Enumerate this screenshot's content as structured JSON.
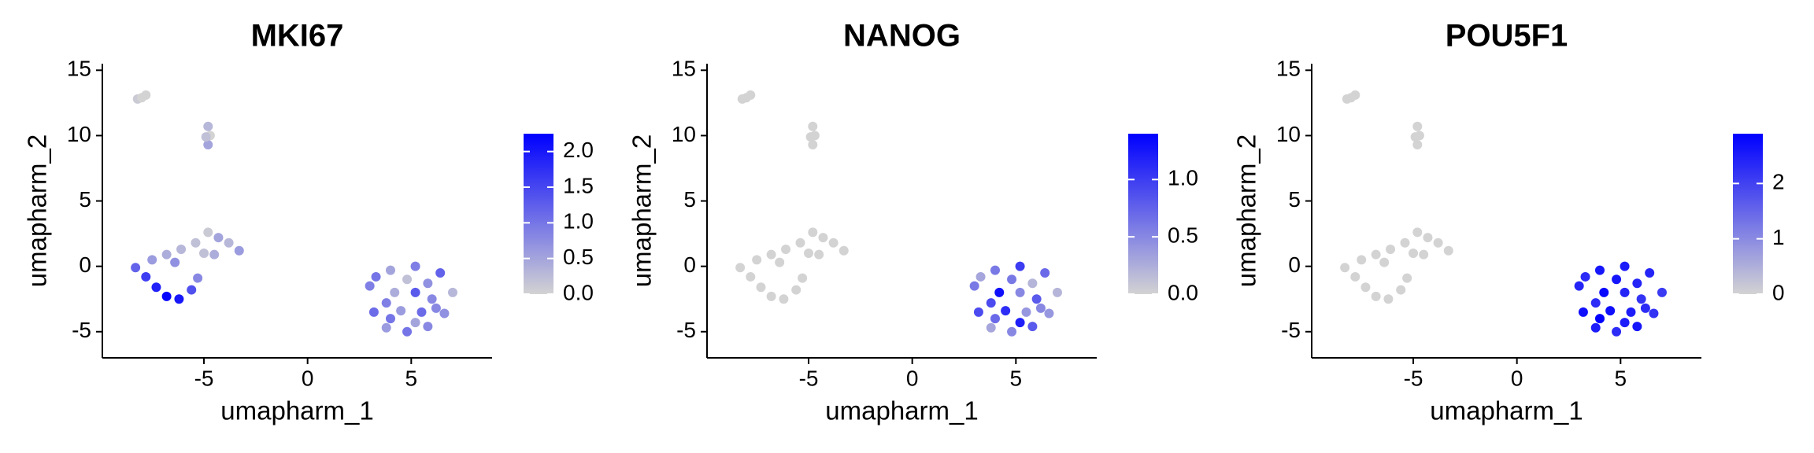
{
  "chart_data": [
    {
      "type": "scatter",
      "title": "MKI67",
      "xlabel": "umapharm_1",
      "ylabel": "umapharm_2",
      "xlim": [
        -9.9,
        8.9
      ],
      "ylim": [
        -7,
        15.5
      ],
      "xticks": [
        -5,
        0,
        5
      ],
      "yticks": [
        -5,
        0,
        5,
        10,
        15
      ],
      "low_color": "#d3d3d3",
      "high_color": "#0000ff",
      "clim": [
        0,
        2.25
      ],
      "cticks": [
        {
          "value": 0,
          "label": "0.0"
        },
        {
          "value": 0.5,
          "label": "0.5"
        },
        {
          "value": 1,
          "label": "1.0"
        },
        {
          "value": 1.5,
          "label": "1.5"
        },
        {
          "value": 2,
          "label": "2.0"
        }
      ],
      "x": [
        -8.2,
        -7.8,
        -8.0,
        -4.8,
        -4.7,
        -4.8,
        -4.9,
        -8.3,
        -7.8,
        -7.3,
        -6.8,
        -6.2,
        -5.6,
        -5.3,
        -7.5,
        -6.8,
        -6.1,
        -5.4,
        -4.8,
        -4.3,
        -3.8,
        -3.3,
        -5.0,
        -4.5,
        -6.4,
        3.0,
        3.2,
        3.8,
        4.8,
        5.8,
        6.6,
        7.0,
        6.4,
        5.2,
        4.0,
        3.3,
        4.2,
        5.2,
        6.0,
        4.5,
        5.5,
        3.8,
        4.8,
        5.8,
        4.0,
        5.2,
        6.2
      ],
      "y": [
        12.8,
        13.1,
        12.9,
        10.7,
        10.0,
        9.3,
        9.9,
        -0.1,
        -0.8,
        -1.6,
        -2.3,
        -2.5,
        -1.8,
        -0.9,
        0.5,
        0.9,
        1.3,
        1.8,
        2.6,
        2.2,
        1.8,
        1.2,
        1.0,
        0.9,
        0.3,
        -1.5,
        -3.5,
        -4.7,
        -5.0,
        -4.6,
        -3.6,
        -2.0,
        -0.5,
        0.0,
        -0.3,
        -0.8,
        -2.0,
        -2.0,
        -2.5,
        -3.4,
        -3.5,
        -2.8,
        -1.0,
        -1.3,
        -4.0,
        -4.3,
        -3.2
      ],
      "values": [
        0.1,
        0,
        0,
        0.3,
        0,
        0.5,
        0.2,
        1.2,
        1.6,
        1.9,
        2.2,
        2.0,
        1.4,
        0.8,
        0.6,
        0.4,
        0.3,
        0.2,
        0.1,
        0.5,
        0.3,
        0.6,
        0.2,
        0.4,
        0.7,
        0.9,
        1.1,
        0.6,
        1.0,
        0.8,
        0.7,
        0.3,
        1.2,
        0.9,
        0.5,
        1.0,
        0.4,
        1.3,
        0.8,
        0.6,
        1.1,
        0.9,
        0.2,
        0.7,
        1.0,
        0.5,
        0.8
      ]
    },
    {
      "type": "scatter",
      "title": "NANOG",
      "xlabel": "umapharm_1",
      "ylabel": "umapharm_2",
      "xlim": [
        -9.9,
        8.9
      ],
      "ylim": [
        -7,
        15.5
      ],
      "xticks": [
        -5,
        0,
        5
      ],
      "yticks": [
        -5,
        0,
        5,
        10,
        15
      ],
      "low_color": "#d3d3d3",
      "high_color": "#0000ff",
      "clim": [
        0,
        1.4
      ],
      "cticks": [
        {
          "value": 0,
          "label": "0.0"
        },
        {
          "value": 0.5,
          "label": "0.5"
        },
        {
          "value": 1,
          "label": "1.0"
        }
      ],
      "x": [
        -8.2,
        -7.8,
        -8.0,
        -4.8,
        -4.7,
        -4.8,
        -4.9,
        -8.3,
        -7.8,
        -7.3,
        -6.8,
        -6.2,
        -5.6,
        -5.3,
        -7.5,
        -6.8,
        -6.1,
        -5.4,
        -4.8,
        -4.3,
        -3.8,
        -3.3,
        -5.0,
        -4.5,
        -6.4,
        3.0,
        3.2,
        3.8,
        4.8,
        5.8,
        6.6,
        7.0,
        6.4,
        5.2,
        4.0,
        3.3,
        4.2,
        5.2,
        6.0,
        4.5,
        5.5,
        3.8,
        4.8,
        5.8,
        4.0,
        5.2,
        6.2
      ],
      "y": [
        12.8,
        13.1,
        12.9,
        10.7,
        10.0,
        9.3,
        9.9,
        -0.1,
        -0.8,
        -1.6,
        -2.3,
        -2.5,
        -1.8,
        -0.9,
        0.5,
        0.9,
        1.3,
        1.8,
        2.6,
        2.2,
        1.8,
        1.2,
        1.0,
        0.9,
        0.3,
        -1.5,
        -3.5,
        -4.7,
        -5.0,
        -4.6,
        -3.6,
        -2.0,
        -0.5,
        0.0,
        -0.3,
        -0.8,
        -2.0,
        -2.0,
        -2.5,
        -3.4,
        -3.5,
        -2.8,
        -1.0,
        -1.3,
        -4.0,
        -4.3,
        -3.2
      ],
      "values": [
        0,
        0,
        0,
        0,
        0,
        0,
        0,
        0,
        0,
        0,
        0,
        0,
        0,
        0,
        0,
        0,
        0,
        0,
        0,
        0,
        0,
        0,
        0,
        0,
        0,
        0.6,
        0.9,
        0.3,
        0.5,
        0.8,
        0.4,
        0.2,
        0.7,
        1.0,
        0.6,
        0.3,
        1.3,
        0.5,
        0.8,
        1.1,
        0.4,
        0.9,
        0.6,
        0.2,
        0.7,
        1.2,
        0.5
      ]
    },
    {
      "type": "scatter",
      "title": "POU5F1",
      "xlabel": "umapharm_1",
      "ylabel": "umapharm_2",
      "xlim": [
        -9.9,
        8.9
      ],
      "ylim": [
        -7,
        15.5
      ],
      "xticks": [
        -5,
        0,
        5
      ],
      "yticks": [
        -5,
        0,
        5,
        10,
        15
      ],
      "low_color": "#d3d3d3",
      "high_color": "#0000ff",
      "clim": [
        0,
        2.9
      ],
      "cticks": [
        0,
        1,
        2
      ],
      "x": [
        -8.2,
        -7.8,
        -8.0,
        -4.8,
        -4.7,
        -4.8,
        -4.9,
        -8.3,
        -7.8,
        -7.3,
        -6.8,
        -6.2,
        -5.6,
        -5.3,
        -7.5,
        -6.8,
        -6.1,
        -5.4,
        -4.8,
        -4.3,
        -3.8,
        -3.3,
        -5.0,
        -4.5,
        -6.4,
        3.0,
        3.2,
        3.8,
        4.8,
        5.8,
        6.6,
        7.0,
        6.4,
        5.2,
        4.0,
        3.3,
        4.2,
        5.2,
        6.0,
        4.5,
        5.5,
        3.8,
        4.8,
        5.8,
        4.0,
        5.2,
        6.2
      ],
      "y": [
        12.8,
        13.1,
        12.9,
        10.7,
        10.0,
        9.3,
        9.9,
        -0.1,
        -0.8,
        -1.6,
        -2.3,
        -2.5,
        -1.8,
        -0.9,
        0.5,
        0.9,
        1.3,
        1.8,
        2.6,
        2.2,
        1.8,
        1.2,
        1.0,
        0.9,
        0.3,
        -1.5,
        -3.5,
        -4.7,
        -5.0,
        -4.6,
        -3.6,
        -2.0,
        -0.5,
        0.0,
        -0.3,
        -0.8,
        -2.0,
        -2.0,
        -2.5,
        -3.4,
        -3.5,
        -2.8,
        -1.0,
        -1.3,
        -4.0,
        -4.3,
        -3.2
      ],
      "values": [
        0,
        0,
        0,
        0,
        0,
        0,
        0,
        0,
        0,
        0,
        0,
        0,
        0,
        0,
        0,
        0,
        0,
        0,
        0,
        0,
        0,
        0,
        0,
        0,
        0,
        2.4,
        2.7,
        2.5,
        2.3,
        2.6,
        2.2,
        2.1,
        2.4,
        2.5,
        2.6,
        2.3,
        2.8,
        2.4,
        2.2,
        2.7,
        2.5,
        2.3,
        2.6,
        2.4,
        2.9,
        2.5,
        2.3
      ]
    }
  ]
}
